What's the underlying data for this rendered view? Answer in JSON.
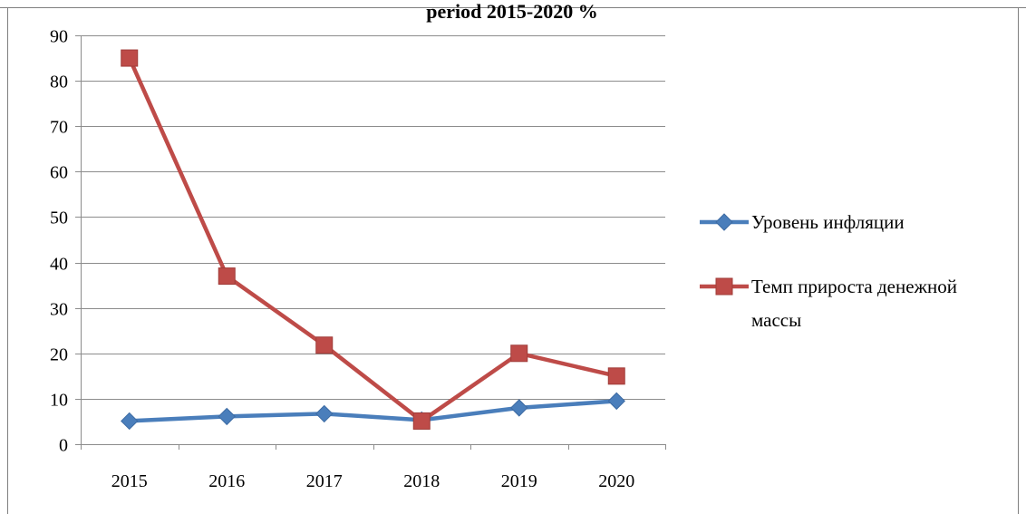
{
  "chart_data": {
    "type": "line",
    "title": "period 2015-2020 %",
    "categories": [
      "2015",
      "2016",
      "2017",
      "2018",
      "2019",
      "2020"
    ],
    "ylim": [
      0,
      90
    ],
    "yticks": [
      0,
      10,
      20,
      30,
      40,
      50,
      60,
      70,
      80,
      90
    ],
    "grid": true,
    "legend_position": "right",
    "series": [
      {
        "name": "Уровень инфляции",
        "values": [
          5.1,
          6.1,
          6.7,
          5.3,
          8.0,
          9.5
        ],
        "color": "#4a7ebb",
        "marker": "diamond"
      },
      {
        "name": "Темп прироста денежной массы",
        "legend_lines": [
          "Темп прироста денежной",
          "массы"
        ],
        "values": [
          85,
          37,
          21.8,
          5.1,
          20,
          15
        ],
        "color": "#be4b48",
        "marker": "square"
      }
    ]
  }
}
